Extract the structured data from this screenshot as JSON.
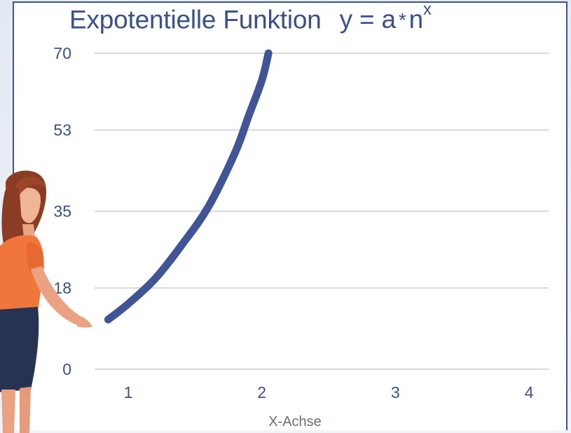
{
  "chart_data": {
    "type": "line",
    "title_text": "Expotentielle Funktion",
    "title_formula": {
      "lhs": "y = a",
      "operator": "*",
      "base": "n",
      "exponent": "x"
    },
    "xlabel": "X-Achse",
    "ylabel": "",
    "x_ticks": [
      "1",
      "2",
      "3",
      "4"
    ],
    "y_ticks": [
      "0",
      "18",
      "35",
      "53",
      "70"
    ],
    "xlim": [
      0.8,
      4
    ],
    "ylim": [
      0,
      70
    ],
    "grid": true,
    "series": [
      {
        "color": "#3f5595",
        "x": [
          0.85,
          1.0,
          1.2,
          1.4,
          1.6,
          1.8,
          1.9,
          2.0,
          2.05
        ],
        "y": [
          11,
          14.5,
          20,
          27.5,
          36,
          48,
          56,
          64,
          70
        ]
      }
    ]
  },
  "colors": {
    "accent": "#3b5088",
    "gridline": "#d9d9d9",
    "curve": "#3f5595"
  },
  "decoration": {
    "illustration": "woman-pointing-at-chart"
  }
}
